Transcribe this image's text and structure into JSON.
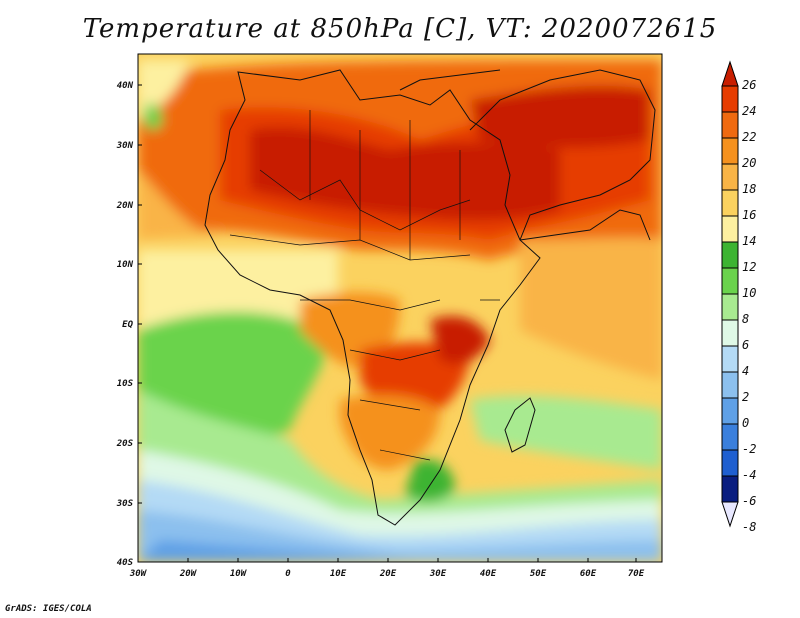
{
  "title": "Temperature at 850hPa [C], VT: 2020072615",
  "credit": "GrADS: IGES/COLA",
  "map": {
    "lat_labels": [
      "40N",
      "30N",
      "20N",
      "10N",
      "EQ",
      "10S",
      "20S",
      "30S",
      "40S"
    ],
    "lon_labels": [
      "30W",
      "20W",
      "10W",
      "0",
      "10E",
      "20E",
      "30E",
      "40E",
      "50E",
      "60E",
      "70E"
    ],
    "region": {
      "lon_range": [
        -30,
        75
      ],
      "lat_range": [
        -40,
        45
      ]
    }
  },
  "colorbar": {
    "labels": [
      "26",
      "24",
      "22",
      "20",
      "18",
      "16",
      "14",
      "12",
      "10",
      "8",
      "6",
      "4",
      "2",
      "0",
      "-2",
      "-4",
      "-6",
      "-8"
    ],
    "colors_top_to_bottom": [
      "#c81e00",
      "#e63c00",
      "#f06a10",
      "#f5911e",
      "#f9b446",
      "#fbd25f",
      "#fdf0a0",
      "#3cb432",
      "#6ad34c",
      "#a8ea90",
      "#dff8e6",
      "#b4daf5",
      "#8cc0ee",
      "#5fa0e6",
      "#3a7fdc",
      "#1f5fd0",
      "#1040b0",
      "#0a1e80"
    ]
  }
}
